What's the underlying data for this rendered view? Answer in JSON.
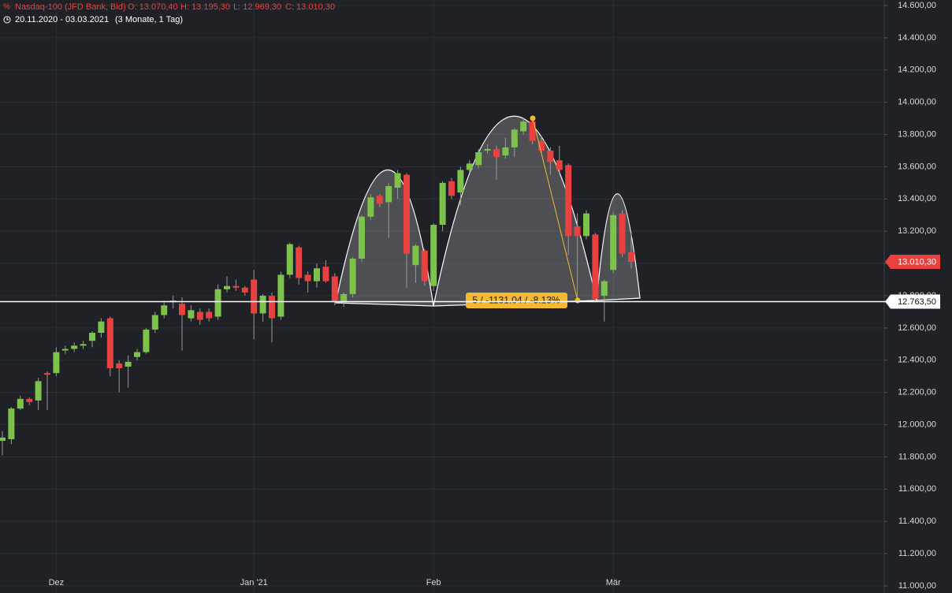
{
  "header": {
    "symbol": "Nasdaq-100 (JFD Bank, Bid)",
    "open": "O: 13.070,40",
    "high": "H: 13.195,30",
    "low": "L: 12.969,30",
    "close": "C: 13.010,30",
    "range": "20.11.2020 - 03.03.2021",
    "period": "(3 Monate, 1 Tag)"
  },
  "chart_data": {
    "type": "candlestick",
    "categories": [
      null,
      null,
      null,
      null,
      null,
      null,
      "Dez",
      null,
      null,
      null,
      null,
      null,
      null,
      null,
      null,
      null,
      null,
      null,
      null,
      null,
      null,
      null,
      null,
      null,
      null,
      null,
      null,
      null,
      "Jan '21",
      null,
      null,
      null,
      null,
      null,
      null,
      null,
      null,
      null,
      null,
      null,
      null,
      null,
      null,
      null,
      null,
      null,
      null,
      null,
      "Feb",
      null,
      null,
      null,
      null,
      null,
      null,
      null,
      null,
      null,
      null,
      null,
      null,
      null,
      null,
      null,
      null,
      null,
      null,
      null,
      "Mär",
      null,
      null
    ],
    "open": [
      11900,
      11910,
      12100,
      12160,
      12150,
      12320,
      12320,
      12460,
      12470,
      12490,
      12520,
      12570,
      12660,
      12380,
      12360,
      12420,
      12450,
      12590,
      12680,
      12760,
      12750,
      12660,
      12700,
      12700,
      12670,
      12840,
      12860,
      12850,
      12900,
      12690,
      12800,
      12670,
      12930,
      13100,
      12930,
      12890,
      12980,
      12920,
      12760,
      12810,
      13030,
      13290,
      13420,
      13380,
      13470,
      13550,
      12990,
      13080,
      12860,
      13240,
      13510,
      13440,
      13580,
      13610,
      13700,
      13710,
      13670,
      13720,
      13820,
      13880,
      13760,
      13700,
      13640,
      13610,
      13230,
      13170,
      13180,
      12800,
      12960,
      13310,
      13070.4
    ],
    "high": [
      11960,
      12110,
      12180,
      12170,
      12290,
      12330,
      12480,
      12490,
      12510,
      12520,
      12580,
      12660,
      12670,
      12400,
      12430,
      12470,
      12600,
      12700,
      12770,
      12800,
      12790,
      12740,
      12720,
      12720,
      12870,
      12920,
      12900,
      12860,
      12960,
      12810,
      12820,
      12950,
      13130,
      13110,
      12950,
      13000,
      13020,
      12940,
      12820,
      13040,
      13300,
      13430,
      13430,
      13500,
      13580,
      13560,
      13120,
      13090,
      13250,
      13510,
      13530,
      13600,
      13640,
      13710,
      13740,
      13730,
      13780,
      13840,
      13900,
      13910,
      13790,
      13720,
      13730,
      13620,
      13310,
      13330,
      13190,
      12900,
      13320,
      13330,
      13195.3
    ],
    "low": [
      11810,
      11880,
      12090,
      12120,
      12090,
      12090,
      12300,
      12440,
      12450,
      12470,
      12480,
      12540,
      12300,
      12200,
      12230,
      12400,
      12440,
      12570,
      12660,
      12720,
      12460,
      12640,
      12620,
      12640,
      12650,
      12820,
      12830,
      12800,
      12530,
      12640,
      12510,
      12650,
      12910,
      12870,
      12820,
      12850,
      12880,
      12740,
      12730,
      12790,
      13010,
      13270,
      13350,
      13160,
      13400,
      12850,
      12880,
      12860,
      12830,
      13200,
      13400,
      13360,
      13560,
      13590,
      13680,
      13520,
      13650,
      13660,
      13800,
      13740,
      13680,
      13550,
      13560,
      13050,
      12760,
      13150,
      12760,
      12640,
      12940,
      13040,
      12969.3
    ],
    "close": [
      11920,
      12100,
      12160,
      12140,
      12270,
      12310,
      12450,
      12470,
      12490,
      12500,
      12570,
      12640,
      12350,
      12350,
      12390,
      12450,
      12590,
      12680,
      12740,
      12770,
      12680,
      12710,
      12650,
      12660,
      12840,
      12860,
      12850,
      12820,
      12690,
      12800,
      12660,
      12930,
      13120,
      12910,
      12890,
      12970,
      12890,
      12760,
      12810,
      13030,
      13290,
      13410,
      13370,
      13480,
      13560,
      13060,
      13110,
      12890,
      13240,
      13500,
      13420,
      13580,
      13620,
      13690,
      13710,
      13660,
      13720,
      13830,
      13880,
      13760,
      13700,
      13630,
      13580,
      13170,
      13170,
      13310,
      12780,
      12890,
      13300,
      13060,
      13010.3
    ],
    "up_color": "#7dc24a",
    "down_color": "#e8413f",
    "ylim": [
      11000,
      14600
    ],
    "yticks": [
      {
        "value": 11000,
        "label": "11.000,00"
      },
      {
        "value": 11200,
        "label": "11.200,00"
      },
      {
        "value": 11400,
        "label": "11.400,00"
      },
      {
        "value": 11600,
        "label": "11.600,00"
      },
      {
        "value": 11800,
        "label": "11.800,00"
      },
      {
        "value": 12000,
        "label": "12.000,00"
      },
      {
        "value": 12200,
        "label": "12.200,00"
      },
      {
        "value": 12400,
        "label": "12.400,00"
      },
      {
        "value": 12600,
        "label": "12.600,00"
      },
      {
        "value": 12800,
        "label": "12.800,00"
      },
      {
        "value": 13000,
        "label": "13.000,00"
      },
      {
        "value": 13200,
        "label": "13.200,00"
      },
      {
        "value": 13400,
        "label": "13.400,00"
      },
      {
        "value": 13600,
        "label": "13.600,00"
      },
      {
        "value": 13800,
        "label": "13.800,00"
      },
      {
        "value": 14000,
        "label": "14.000,00"
      },
      {
        "value": 14200,
        "label": "14.200,00"
      },
      {
        "value": 14400,
        "label": "14.400,00"
      },
      {
        "value": 14600,
        "label": "14.600,00"
      }
    ],
    "grid": true,
    "price_lines": [
      {
        "value": 13010.3,
        "label": "13.010,30",
        "color": "#e8413f",
        "line": false
      },
      {
        "value": 12763.5,
        "label": "12.763,50",
        "color": "#ffffff",
        "line": true
      }
    ],
    "annotation": "5 / -1131.04 / -8.13%"
  }
}
